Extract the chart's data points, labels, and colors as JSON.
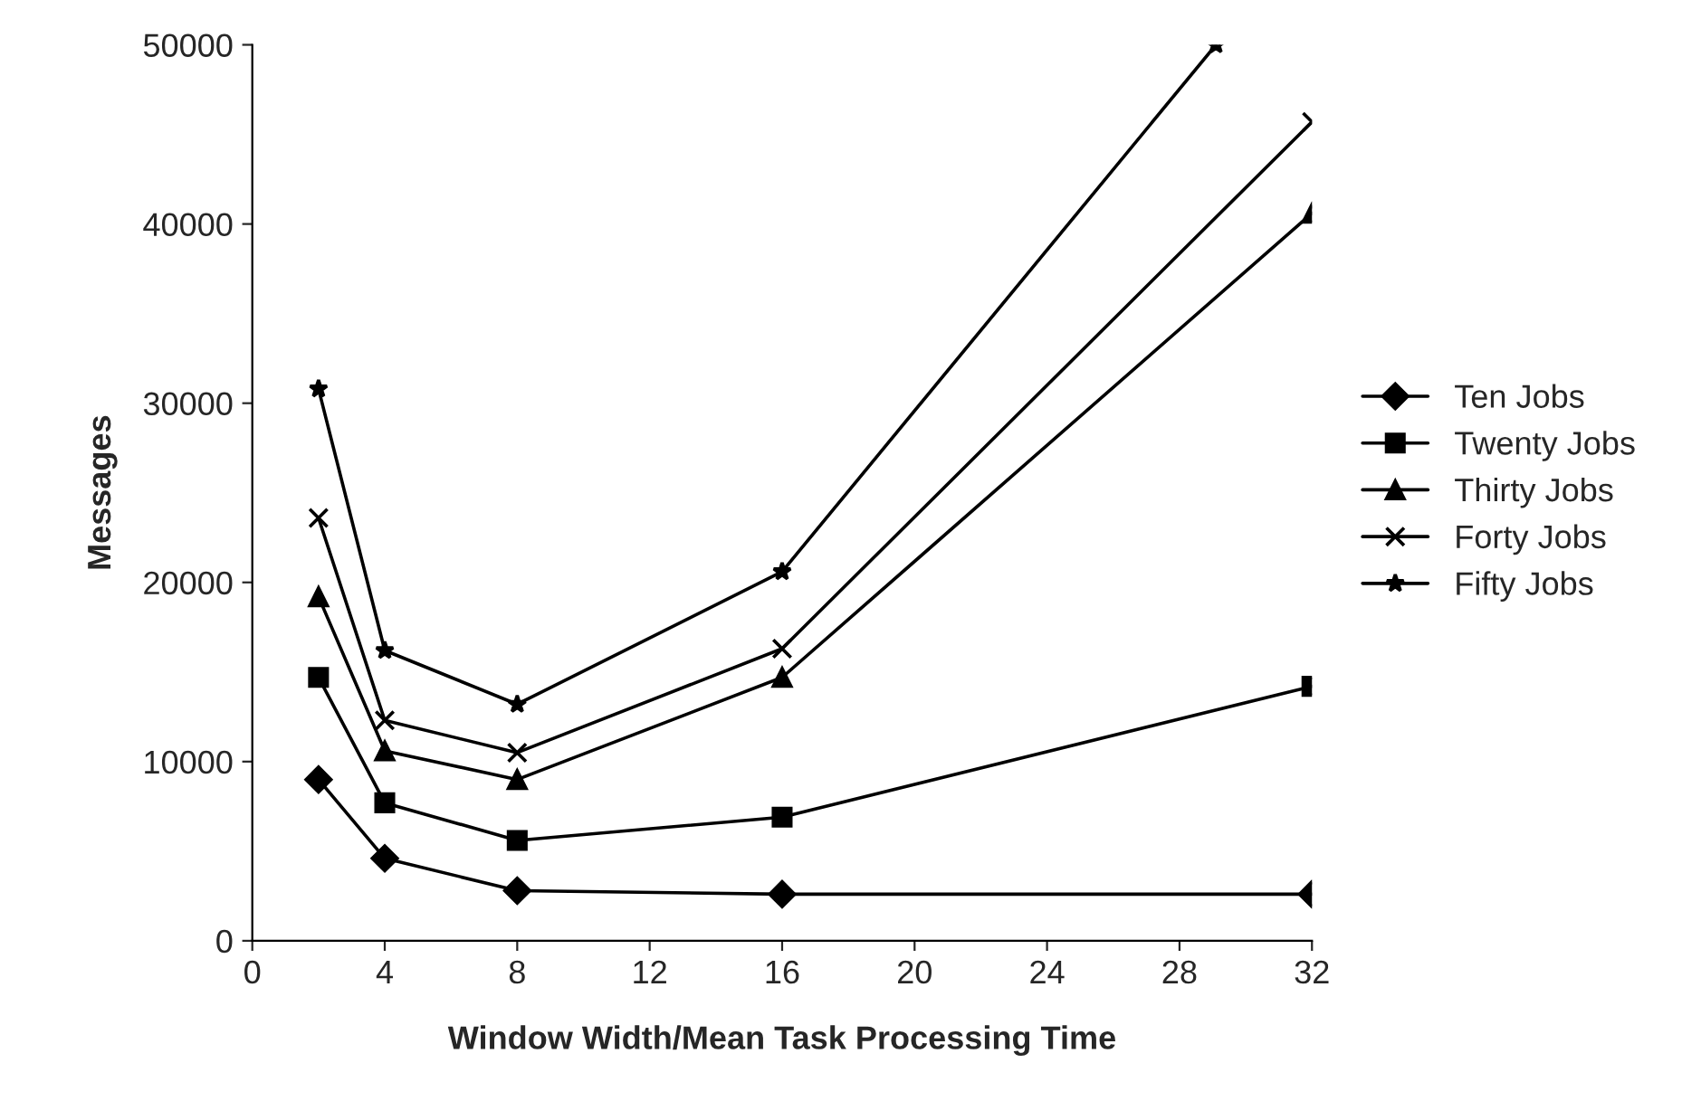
{
  "chart_data": {
    "type": "line",
    "xlabel": "Window Width/Mean Task Processing Time",
    "ylabel": "Messages",
    "x": [
      2,
      4,
      8,
      16,
      32
    ],
    "series": [
      {
        "name": "Ten Jobs",
        "color": "#000000",
        "marker": "diamond",
        "values": [
          9000,
          4600,
          2800,
          2600,
          2600
        ]
      },
      {
        "name": "Twenty Jobs",
        "color": "#000000",
        "marker": "square",
        "values": [
          14700,
          7700,
          5600,
          6900,
          14200
        ]
      },
      {
        "name": "Thirty Jobs",
        "color": "#000000",
        "marker": "triangle",
        "values": [
          19200,
          10600,
          9000,
          14700,
          40600
        ]
      },
      {
        "name": "Forty Jobs",
        "color": "#000000",
        "marker": "cross",
        "values": [
          23600,
          12300,
          10500,
          16300,
          45700
        ]
      },
      {
        "name": "Fifty Jobs",
        "color": "#000000",
        "marker": "star",
        "x": [
          2,
          4,
          8,
          16,
          29.1
        ],
        "values": [
          30800,
          16200,
          13200,
          20600,
          50000
        ]
      }
    ],
    "xlim": [
      0,
      32
    ],
    "xticks": [
      0,
      4,
      8,
      12,
      16,
      20,
      24,
      28,
      32
    ],
    "ylim": [
      0,
      50000
    ],
    "yticks": [
      0,
      10000,
      20000,
      30000,
      40000,
      50000
    ],
    "grid": false,
    "legend": "right"
  }
}
